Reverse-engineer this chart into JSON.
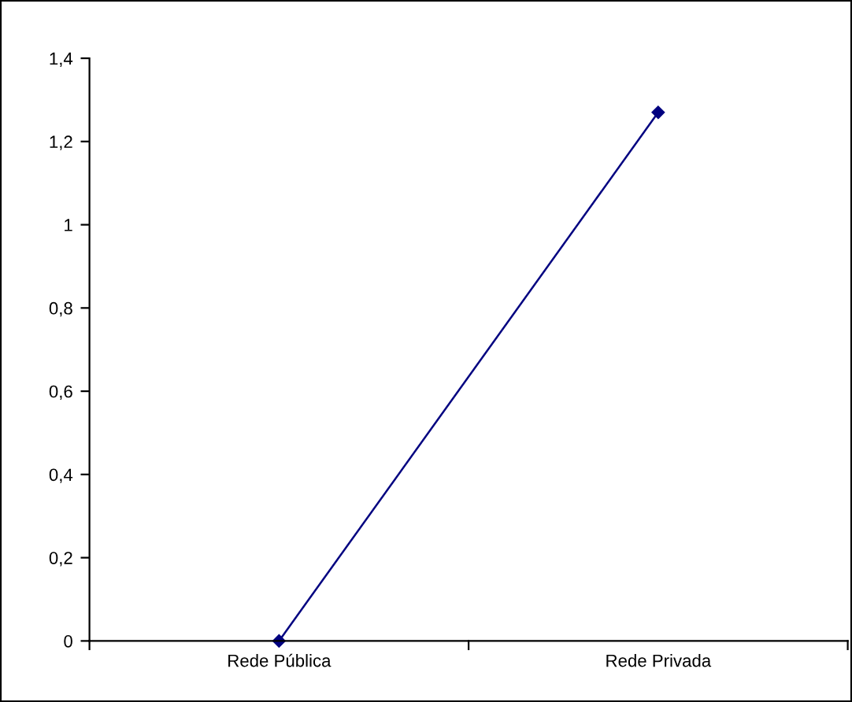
{
  "chart_data": {
    "type": "line",
    "categories": [
      "Rede Pública",
      "Rede Privada"
    ],
    "series": [
      {
        "color": "#000080",
        "values": [
          0,
          1.27
        ]
      }
    ],
    "ylim": [
      0,
      1.4
    ],
    "yticks": [
      {
        "value": 0,
        "label": "0"
      },
      {
        "value": 0.2,
        "label": "0,2"
      },
      {
        "value": 0.4,
        "label": "0,4"
      },
      {
        "value": 0.6,
        "label": "0,6"
      },
      {
        "value": 0.8,
        "label": "0,8"
      },
      {
        "value": 1,
        "label": "1"
      },
      {
        "value": 1.2,
        "label": "1,2"
      },
      {
        "value": 1.4,
        "label": "1,4"
      }
    ],
    "grid": false,
    "marker": "diamond",
    "line_style": "solid"
  }
}
